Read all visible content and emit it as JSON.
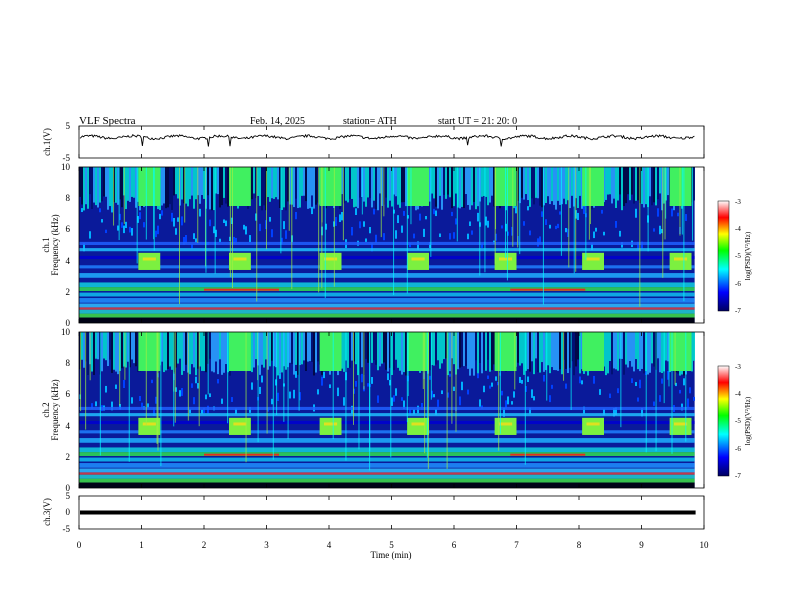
{
  "header": {
    "title": "VLF  Spectra",
    "date": "Feb. 14, 2025",
    "station": "station= ATH",
    "start": "start  UT  =   21: 20: 0"
  },
  "chart_data": [
    {
      "type": "line",
      "ylabel": "ch.1(V)",
      "ylim": [
        -5,
        5
      ],
      "xlim": [
        0,
        10
      ],
      "y_tick_labels": [
        "5",
        "-5"
      ],
      "description_level": 1.5,
      "grid": false
    },
    {
      "type": "heatmap",
      "ylabel_top": "ch.1",
      "ylabel": "Frequency  (kHz)",
      "ylim": [
        0,
        10
      ],
      "xlim": [
        0,
        10
      ],
      "y_tick_labels": [
        "0",
        "2",
        "4",
        "6",
        "8",
        "10"
      ],
      "bursts_min": [
        1.1,
        2.55,
        4.0,
        5.4,
        6.8,
        8.2,
        9.6
      ],
      "colorbar": {
        "label": "log(PSD)(V²/Hz)",
        "range": [
          -7,
          -3
        ],
        "tick_labels": [
          "-3",
          "-4",
          "-5",
          "-6",
          "-7"
        ],
        "colors": [
          "#000060",
          "#0000ff",
          "#00ffff",
          "#00ff00",
          "#ffff00",
          "#ff0000",
          "#ffffff"
        ]
      }
    },
    {
      "type": "heatmap",
      "ylabel_top": "ch.2",
      "ylabel": "Frequency  (kHz)",
      "ylim": [
        0,
        10
      ],
      "xlim": [
        0,
        10
      ],
      "y_tick_labels": [
        "0",
        "2",
        "4",
        "6",
        "8",
        "10"
      ],
      "bursts_min": [
        1.1,
        2.55,
        4.0,
        5.4,
        6.8,
        8.2,
        9.6
      ],
      "colorbar": {
        "label": "log(PSD)(V²/Hz)",
        "range": [
          -7,
          -3
        ],
        "tick_labels": [
          "-3",
          "-4",
          "-5",
          "-6",
          "-7"
        ],
        "colors": [
          "#000060",
          "#0000ff",
          "#00ffff",
          "#00ff00",
          "#ffff00",
          "#ff0000",
          "#ffffff"
        ]
      }
    },
    {
      "type": "line",
      "ylabel": "ch.3(V)",
      "ylim": [
        -5,
        5
      ],
      "xlim": [
        0,
        10
      ],
      "y_tick_labels": [
        "5",
        "0",
        "-5"
      ],
      "description_level": 0,
      "grid": false
    }
  ],
  "xaxis": {
    "xlabel": "Time  (min)",
    "tick_labels": [
      "0",
      "1",
      "2",
      "3",
      "4",
      "5",
      "6",
      "7",
      "8",
      "9",
      "10"
    ]
  }
}
